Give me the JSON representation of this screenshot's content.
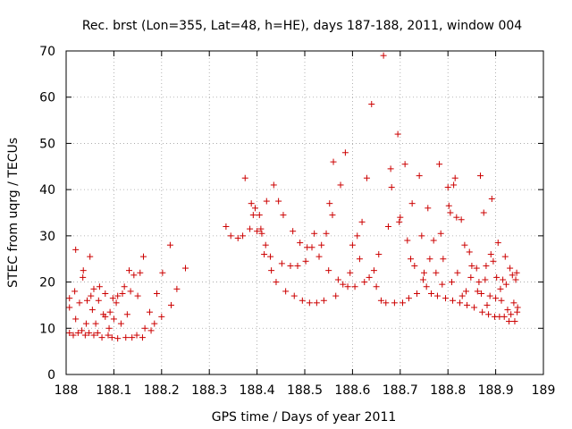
{
  "chart_data": {
    "type": "scatter",
    "title": "Rec. brst (Lon=355, Lat=48, h=HE), days 187-188, 2011, window 004",
    "xlabel": "GPS time / Days of year 2011",
    "ylabel": "STEC from uqrg / TECUs",
    "xlim": [
      188,
      189
    ],
    "ylim": [
      0,
      70
    ],
    "xticks": [
      "188",
      "188.1",
      "188.2",
      "188.3",
      "188.4",
      "188.5",
      "188.6",
      "188.7",
      "188.8",
      "188.9",
      "189"
    ],
    "yticks": [
      "0",
      "10",
      "20",
      "30",
      "40",
      "50",
      "60",
      "70"
    ],
    "grid": true,
    "marker": "+",
    "color": "#cc0000",
    "points": [
      [
        188.007,
        9.0
      ],
      [
        188.007,
        14.5
      ],
      [
        188.007,
        16.5
      ],
      [
        188.015,
        8.5
      ],
      [
        188.018,
        18.0
      ],
      [
        188.02,
        27.0
      ],
      [
        188.02,
        12.0
      ],
      [
        188.025,
        9.0
      ],
      [
        188.028,
        15.5
      ],
      [
        188.033,
        9.5
      ],
      [
        188.035,
        21.0
      ],
      [
        188.036,
        22.5
      ],
      [
        188.04,
        8.5
      ],
      [
        188.042,
        11.0
      ],
      [
        188.044,
        16.0
      ],
      [
        188.048,
        9.0
      ],
      [
        188.05,
        25.5
      ],
      [
        188.052,
        17.0
      ],
      [
        188.055,
        14.0
      ],
      [
        188.058,
        8.5
      ],
      [
        188.058,
        18.5
      ],
      [
        188.062,
        11.0
      ],
      [
        188.066,
        9.0
      ],
      [
        188.068,
        16.0
      ],
      [
        188.07,
        19.0
      ],
      [
        188.075,
        8.0
      ],
      [
        188.078,
        13.0
      ],
      [
        188.082,
        12.5
      ],
      [
        188.082,
        17.5
      ],
      [
        188.088,
        8.5
      ],
      [
        188.09,
        10.0
      ],
      [
        188.092,
        13.5
      ],
      [
        188.096,
        8.0
      ],
      [
        188.098,
        16.5
      ],
      [
        188.1,
        12.0
      ],
      [
        188.105,
        15.5
      ],
      [
        188.108,
        7.8
      ],
      [
        188.108,
        17.0
      ],
      [
        188.115,
        11.0
      ],
      [
        188.118,
        17.5
      ],
      [
        188.122,
        19.0
      ],
      [
        188.125,
        8.0
      ],
      [
        188.128,
        13.0
      ],
      [
        188.132,
        22.5
      ],
      [
        188.135,
        18.0
      ],
      [
        188.138,
        8.0
      ],
      [
        188.142,
        21.5
      ],
      [
        188.148,
        8.5
      ],
      [
        188.15,
        17.0
      ],
      [
        188.155,
        22.0
      ],
      [
        188.16,
        8.0
      ],
      [
        188.162,
        25.5
      ],
      [
        188.165,
        10.0
      ],
      [
        188.175,
        13.5
      ],
      [
        188.178,
        9.5
      ],
      [
        188.185,
        11.0
      ],
      [
        188.19,
        17.5
      ],
      [
        188.2,
        12.5
      ],
      [
        188.202,
        22.0
      ],
      [
        188.218,
        28.0
      ],
      [
        188.22,
        15.0
      ],
      [
        188.232,
        18.5
      ],
      [
        188.25,
        23.0
      ],
      [
        188.335,
        32.0
      ],
      [
        188.345,
        30.0
      ],
      [
        188.36,
        29.5
      ],
      [
        188.37,
        30.0
      ],
      [
        188.375,
        42.5
      ],
      [
        188.385,
        31.5
      ],
      [
        188.388,
        37.0
      ],
      [
        188.392,
        34.5
      ],
      [
        188.396,
        36.0
      ],
      [
        188.4,
        31.0
      ],
      [
        188.405,
        34.5
      ],
      [
        188.408,
        31.5
      ],
      [
        188.41,
        30.5
      ],
      [
        188.415,
        26.0
      ],
      [
        188.418,
        28.0
      ],
      [
        188.42,
        37.5
      ],
      [
        188.428,
        25.5
      ],
      [
        188.43,
        22.5
      ],
      [
        188.435,
        41.0
      ],
      [
        188.44,
        20.0
      ],
      [
        188.445,
        37.5
      ],
      [
        188.452,
        24.0
      ],
      [
        188.455,
        34.5
      ],
      [
        188.46,
        18.0
      ],
      [
        188.47,
        23.5
      ],
      [
        188.475,
        31.0
      ],
      [
        188.478,
        17.0
      ],
      [
        188.485,
        23.5
      ],
      [
        188.49,
        28.5
      ],
      [
        188.495,
        16.0
      ],
      [
        188.502,
        24.5
      ],
      [
        188.505,
        27.5
      ],
      [
        188.51,
        15.5
      ],
      [
        188.515,
        27.5
      ],
      [
        188.52,
        30.5
      ],
      [
        188.525,
        15.5
      ],
      [
        188.53,
        25.5
      ],
      [
        188.535,
        28.0
      ],
      [
        188.54,
        16.0
      ],
      [
        188.545,
        30.5
      ],
      [
        188.55,
        22.5
      ],
      [
        188.552,
        37.0
      ],
      [
        188.558,
        34.5
      ],
      [
        188.56,
        46.0
      ],
      [
        188.565,
        17.0
      ],
      [
        188.57,
        20.5
      ],
      [
        188.575,
        41.0
      ],
      [
        188.58,
        19.5
      ],
      [
        188.585,
        48.0
      ],
      [
        188.59,
        19.0
      ],
      [
        188.595,
        22.0
      ],
      [
        188.6,
        28.0
      ],
      [
        188.605,
        19.0
      ],
      [
        188.61,
        30.0
      ],
      [
        188.615,
        25.0
      ],
      [
        188.62,
        33.0
      ],
      [
        188.625,
        20.0
      ],
      [
        188.63,
        42.5
      ],
      [
        188.635,
        21.0
      ],
      [
        188.64,
        58.5
      ],
      [
        188.645,
        22.5
      ],
      [
        188.65,
        19.0
      ],
      [
        188.655,
        26.0
      ],
      [
        188.66,
        16.0
      ],
      [
        188.665,
        69.0
      ],
      [
        188.67,
        15.5
      ],
      [
        188.675,
        32.0
      ],
      [
        188.68,
        44.5
      ],
      [
        188.682,
        40.5
      ],
      [
        188.688,
        15.5
      ],
      [
        188.695,
        52.0
      ],
      [
        188.698,
        33.0
      ],
      [
        188.7,
        34.0
      ],
      [
        188.705,
        15.5
      ],
      [
        188.71,
        45.5
      ],
      [
        188.715,
        29.0
      ],
      [
        188.718,
        16.5
      ],
      [
        188.722,
        25.0
      ],
      [
        188.725,
        37.0
      ],
      [
        188.73,
        23.5
      ],
      [
        188.735,
        17.5
      ],
      [
        188.74,
        43.0
      ],
      [
        188.745,
        30.0
      ],
      [
        188.748,
        20.5
      ],
      [
        188.75,
        22.0
      ],
      [
        188.755,
        19.0
      ],
      [
        188.758,
        36.0
      ],
      [
        188.762,
        25.0
      ],
      [
        188.765,
        17.5
      ],
      [
        188.77,
        29.0
      ],
      [
        188.775,
        22.0
      ],
      [
        188.778,
        17.0
      ],
      [
        188.782,
        45.5
      ],
      [
        188.785,
        30.5
      ],
      [
        188.788,
        19.5
      ],
      [
        188.79,
        25.0
      ],
      [
        188.795,
        16.5
      ],
      [
        188.8,
        40.5
      ],
      [
        188.802,
        36.5
      ],
      [
        188.805,
        35.0
      ],
      [
        188.808,
        20.0
      ],
      [
        188.81,
        16.0
      ],
      [
        188.812,
        41.0
      ],
      [
        188.815,
        42.5
      ],
      [
        188.818,
        34.0
      ],
      [
        188.82,
        22.0
      ],
      [
        188.825,
        15.5
      ],
      [
        188.828,
        33.5
      ],
      [
        188.83,
        17.0
      ],
      [
        188.835,
        28.0
      ],
      [
        188.838,
        18.0
      ],
      [
        188.84,
        15.0
      ],
      [
        188.845,
        26.5
      ],
      [
        188.848,
        21.0
      ],
      [
        188.85,
        23.5
      ],
      [
        188.855,
        14.5
      ],
      [
        188.86,
        23.0
      ],
      [
        188.862,
        18.0
      ],
      [
        188.865,
        20.0
      ],
      [
        188.868,
        43.0
      ],
      [
        188.87,
        17.5
      ],
      [
        188.872,
        13.5
      ],
      [
        188.875,
        35.0
      ],
      [
        188.878,
        20.5
      ],
      [
        188.88,
        23.5
      ],
      [
        188.882,
        15.0
      ],
      [
        188.885,
        13.0
      ],
      [
        188.888,
        17.0
      ],
      [
        188.89,
        26.0
      ],
      [
        188.892,
        38.0
      ],
      [
        188.895,
        24.5
      ],
      [
        188.898,
        12.5
      ],
      [
        188.9,
        16.5
      ],
      [
        188.902,
        21.0
      ],
      [
        188.905,
        28.5
      ],
      [
        188.908,
        12.5
      ],
      [
        188.91,
        18.5
      ],
      [
        188.912,
        16.0
      ],
      [
        188.915,
        20.5
      ],
      [
        188.918,
        12.5
      ],
      [
        188.92,
        25.5
      ],
      [
        188.922,
        19.5
      ],
      [
        188.925,
        14.0
      ],
      [
        188.928,
        11.5
      ],
      [
        188.93,
        23.0
      ],
      [
        188.932,
        13.0
      ],
      [
        188.935,
        21.5
      ],
      [
        188.938,
        15.5
      ],
      [
        188.94,
        11.5
      ],
      [
        188.942,
        20.5
      ],
      [
        188.944,
        22.0
      ],
      [
        188.945,
        13.5
      ],
      [
        188.946,
        14.5
      ]
    ]
  }
}
